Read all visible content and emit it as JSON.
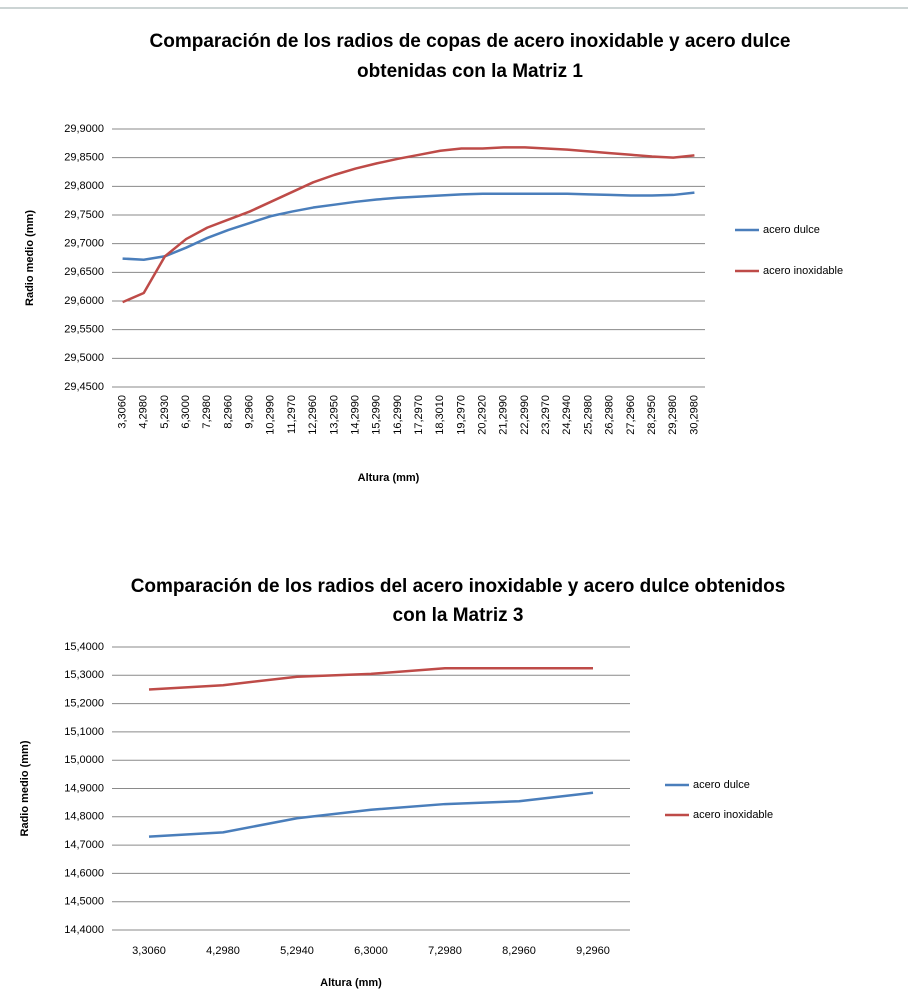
{
  "chart_data": [
    {
      "type": "line",
      "title": [
        "Comparación de los radios de copas de acero inoxidable y acero dulce",
        "obtenidas con la Matriz 1"
      ],
      "x_label": "Altura (mm)",
      "y_label": "Radio medio (mm)",
      "categories": [
        "3,3060",
        "4,2980",
        "5,2930",
        "6,3000",
        "7,2980",
        "8,2960",
        "9,2960",
        "10,2990",
        "11,2970",
        "12,2960",
        "13,2950",
        "14,2990",
        "15,2990",
        "16,2990",
        "17,2970",
        "18,3010",
        "19,2970",
        "20,2920",
        "21,2990",
        "22,2990",
        "23,2970",
        "24,2940",
        "25,2980",
        "26,2980",
        "27,2960",
        "28,2950",
        "29,2980",
        "30,2980"
      ],
      "series": [
        {
          "name": "acero dulce",
          "color": "#4a7ebb",
          "values": [
            29.674,
            29.672,
            29.678,
            29.693,
            29.71,
            29.724,
            29.736,
            29.748,
            29.756,
            29.763,
            29.768,
            29.773,
            29.777,
            29.78,
            29.782,
            29.784,
            29.786,
            29.787,
            29.787,
            29.787,
            29.787,
            29.787,
            29.786,
            29.785,
            29.784,
            29.784,
            29.785,
            29.789
          ]
        },
        {
          "name": "acero inoxidable",
          "color": "#be4b48",
          "values": [
            29.598,
            29.614,
            29.678,
            29.708,
            29.728,
            29.742,
            29.756,
            29.773,
            29.79,
            29.807,
            29.82,
            29.831,
            29.84,
            29.848,
            29.855,
            29.862,
            29.866,
            29.866,
            29.868,
            29.868,
            29.866,
            29.864,
            29.861,
            29.858,
            29.855,
            29.852,
            29.85,
            29.854
          ]
        }
      ],
      "ylim": [
        29.45,
        29.9
      ],
      "yticks": [
        {
          "value": 29.45,
          "label": "29,4500"
        },
        {
          "value": 29.5,
          "label": "29,5000"
        },
        {
          "value": 29.55,
          "label": "29,5500"
        },
        {
          "value": 29.6,
          "label": "29,6000"
        },
        {
          "value": 29.65,
          "label": "29,6500"
        },
        {
          "value": 29.7,
          "label": "29,7000"
        },
        {
          "value": 29.75,
          "label": "29,7500"
        },
        {
          "value": 29.8,
          "label": "29,8000"
        },
        {
          "value": 29.85,
          "label": "29,8500"
        },
        {
          "value": 29.9,
          "label": "29,9000"
        }
      ],
      "grid": true,
      "legend": "right"
    },
    {
      "type": "line",
      "title": [
        "Comparación de los radios del acero inoxidable y acero dulce obtenidos",
        "con la Matriz 3"
      ],
      "x_label": "Altura (mm)",
      "y_label": "Radio medio (mm)",
      "categories": [
        "3,3060",
        "4,2980",
        "5,2940",
        "6,3000",
        "7,2980",
        "8,2960",
        "9,2960"
      ],
      "series": [
        {
          "name": "acero dulce",
          "color": "#4a7ebb",
          "values": [
            14.73,
            14.745,
            14.795,
            14.825,
            14.845,
            14.855,
            14.885
          ]
        },
        {
          "name": "acero inoxidable",
          "color": "#be4b48",
          "values": [
            15.25,
            15.265,
            15.295,
            15.305,
            15.325,
            15.325,
            15.325
          ]
        }
      ],
      "ylim": [
        14.4,
        15.4
      ],
      "yticks": [
        {
          "value": 14.4,
          "label": "14,4000"
        },
        {
          "value": 14.5,
          "label": "14,5000"
        },
        {
          "value": 14.6,
          "label": "14,6000"
        },
        {
          "value": 14.7,
          "label": "14,7000"
        },
        {
          "value": 14.8,
          "label": "14,8000"
        },
        {
          "value": 14.9,
          "label": "14,9000"
        },
        {
          "value": 15.0,
          "label": "15,0000"
        },
        {
          "value": 15.1,
          "label": "15,1000"
        },
        {
          "value": 15.2,
          "label": "15,2000"
        },
        {
          "value": 15.3,
          "label": "15,3000"
        },
        {
          "value": 15.4,
          "label": "15,4000"
        }
      ],
      "grid": true,
      "legend": "right"
    }
  ]
}
